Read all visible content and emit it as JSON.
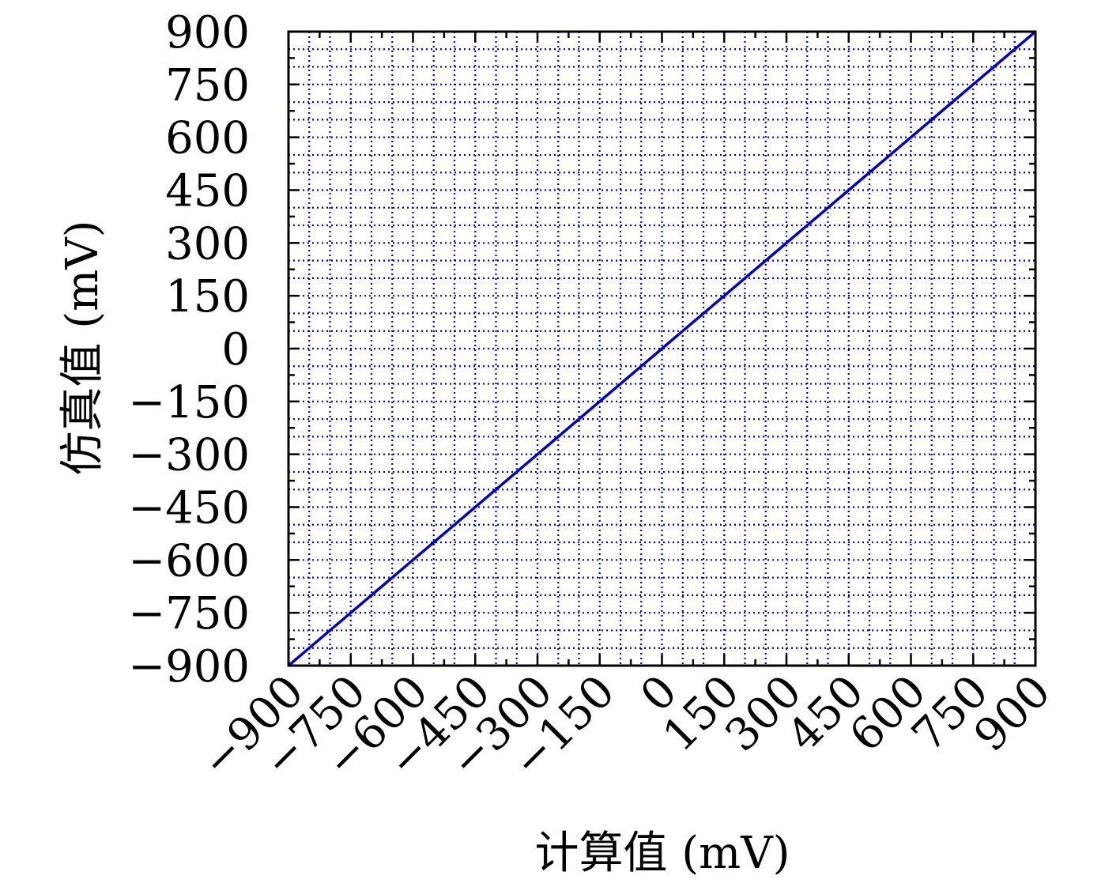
{
  "chart_data": {
    "type": "line",
    "title": "",
    "xlabel": "计算值 (mV)",
    "ylabel": "仿真值 (mV)",
    "xlim": [
      -900,
      900
    ],
    "ylim": [
      -900,
      900
    ],
    "xticks": [
      -900,
      -750,
      -600,
      -450,
      -300,
      -150,
      0,
      150,
      300,
      450,
      600,
      750,
      900
    ],
    "yticks": [
      -900,
      -750,
      -600,
      -450,
      -300,
      -150,
      0,
      150,
      300,
      450,
      600,
      750,
      900
    ],
    "xtick_labels": [
      "−900",
      "−750",
      "−600",
      "−450",
      "−300",
      "−150",
      "0",
      "150",
      "300",
      "450",
      "600",
      "750",
      "900"
    ],
    "ytick_labels": [
      "−900",
      "−750",
      "−600",
      "−450",
      "−300",
      "−150",
      "0",
      "150",
      "300",
      "450",
      "600",
      "750",
      "900"
    ],
    "grid": true,
    "grid_step": 50,
    "grid_style": "dotted",
    "line_color": "#0000cc",
    "grid_color": "#0000cc",
    "series": [
      {
        "x": [
          -900,
          -850,
          -800,
          -750,
          -700,
          -650,
          -600,
          -550,
          -500,
          -450,
          -400,
          -350,
          -300,
          -250,
          -200,
          -150,
          -100,
          -50,
          0,
          50,
          100,
          150,
          200,
          250,
          300,
          350,
          400,
          450,
          500,
          550,
          600,
          650,
          700,
          750,
          800,
          850,
          900
        ],
        "y": [
          -900,
          -850,
          -800,
          -750,
          -700,
          -650,
          -600,
          -550,
          -500,
          -450,
          -400,
          -350,
          -300,
          -250,
          -200,
          -150,
          -100,
          -50,
          0,
          50,
          100,
          150,
          200,
          250,
          300,
          350,
          400,
          450,
          500,
          550,
          600,
          650,
          700,
          750,
          800,
          850,
          900
        ]
      }
    ]
  }
}
